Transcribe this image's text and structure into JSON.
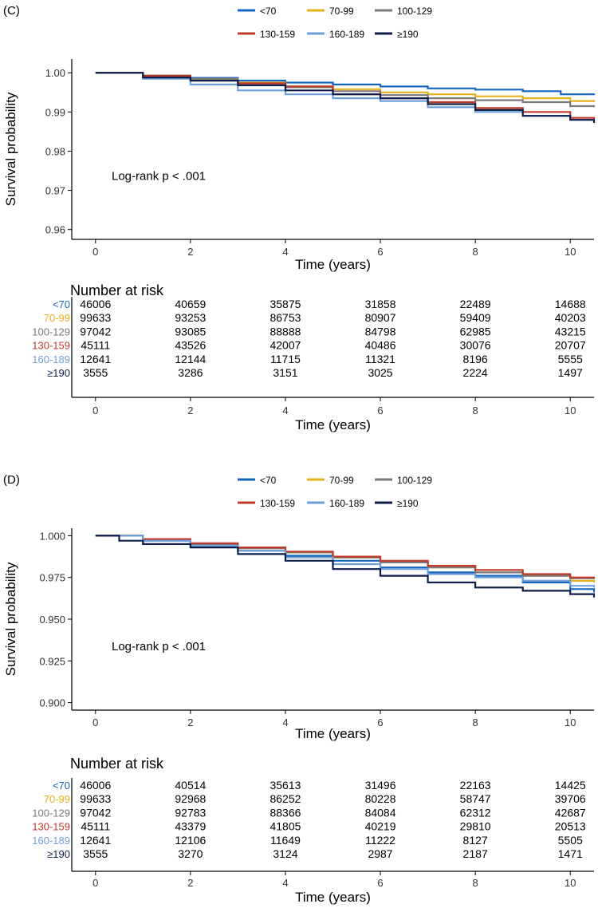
{
  "colors": {
    "<70": "#1565C0",
    "70-99": "#E6B01B",
    "100-129": "#7A7A7A",
    "130-159": "#C0392B",
    "160-189": "#6FA0DC",
    "≥190": "#0E1E4A"
  },
  "chart_data": [
    {
      "type": "line",
      "subtype": "kaplan-meier",
      "panel_label": "(C)",
      "xlabel": "Time (years)",
      "ylabel": "Survival probability",
      "xlim": [
        -0.5,
        10.5
      ],
      "ylim": [
        0.9575,
        1.0035
      ],
      "x_ticks": [
        0,
        2,
        4,
        6,
        8,
        10
      ],
      "x_tick_labels": [
        "0",
        "2",
        "4",
        "6",
        "8",
        "10"
      ],
      "y_ticks": [
        0.96,
        0.97,
        0.98,
        0.99,
        1.0
      ],
      "y_tick_labels": [
        "0.96",
        "0.97",
        "0.98",
        "0.99",
        "1.00"
      ],
      "annotation": "Log-rank p < .001",
      "legend_labels": [
        "<70",
        "70-99",
        "100-129",
        "130-159",
        "160-189",
        "≥190"
      ],
      "series": [
        {
          "name": "<70",
          "x": [
            0,
            1,
            2,
            3,
            4,
            5,
            6,
            7,
            8,
            9,
            9.8,
            10.5
          ],
          "y": [
            1.0,
            0.9993,
            0.9987,
            0.998,
            0.9975,
            0.997,
            0.9965,
            0.996,
            0.9957,
            0.9953,
            0.9945,
            0.9943
          ]
        },
        {
          "name": "70-99",
          "x": [
            0,
            1,
            2,
            3,
            4,
            5,
            6,
            7,
            8,
            9,
            10,
            10.5
          ],
          "y": [
            1.0,
            0.9993,
            0.9985,
            0.9975,
            0.9965,
            0.9958,
            0.995,
            0.9945,
            0.994,
            0.9935,
            0.9928,
            0.9925
          ]
        },
        {
          "name": "100-129",
          "x": [
            0,
            1,
            2,
            3,
            4,
            5,
            6,
            7,
            8,
            9,
            10,
            10.5
          ],
          "y": [
            1.0,
            0.9993,
            0.9985,
            0.9973,
            0.9963,
            0.9953,
            0.9943,
            0.9935,
            0.993,
            0.9925,
            0.9915,
            0.9912
          ]
        },
        {
          "name": "130-159",
          "x": [
            0,
            1,
            2,
            3,
            4,
            5,
            6,
            7,
            8,
            9,
            10,
            10.5
          ],
          "y": [
            1.0,
            0.9992,
            0.998,
            0.9973,
            0.9965,
            0.9945,
            0.9935,
            0.9925,
            0.991,
            0.99,
            0.9885,
            0.9882
          ]
        },
        {
          "name": "160-189",
          "x": [
            0,
            1,
            2,
            3,
            4,
            5,
            6,
            7,
            8,
            9,
            10,
            10.5
          ],
          "y": [
            1.0,
            0.9985,
            0.997,
            0.9955,
            0.9945,
            0.9935,
            0.9928,
            0.9912,
            0.99,
            0.989,
            0.988,
            0.9875
          ]
        },
        {
          "name": "≥190",
          "x": [
            0,
            1,
            2,
            3,
            4,
            5,
            6,
            7,
            8,
            9,
            10,
            10.5
          ],
          "y": [
            1.0,
            0.9988,
            0.998,
            0.9968,
            0.9955,
            0.9945,
            0.9935,
            0.992,
            0.9905,
            0.989,
            0.988,
            0.9872
          ]
        }
      ],
      "risk_table": {
        "title": "Number at risk",
        "xlabel": "Time (years)",
        "time_points": [
          0,
          2,
          4,
          6,
          8,
          10
        ],
        "tick_labels": [
          "0",
          "2",
          "4",
          "6",
          "8",
          "10"
        ],
        "rows": [
          {
            "label": "<70",
            "values": [
              "46006",
              "40659",
              "35875",
              "31858",
              "22489",
              "14688"
            ]
          },
          {
            "label": "70-99",
            "values": [
              "99633",
              "93253",
              "86753",
              "80907",
              "59409",
              "40203"
            ]
          },
          {
            "label": "100-129",
            "values": [
              "97042",
              "93085",
              "88888",
              "84798",
              "62985",
              "43215"
            ]
          },
          {
            "label": "130-159",
            "values": [
              "45111",
              "43526",
              "42007",
              "40486",
              "30076",
              "20707"
            ]
          },
          {
            "label": "160-189",
            "values": [
              "12641",
              "12144",
              "11715",
              "11321",
              "8196",
              "5555"
            ]
          },
          {
            "label": "≥190",
            "values": [
              "3555",
              "3286",
              "3151",
              "3025",
              "2224",
              "1497"
            ]
          }
        ]
      }
    },
    {
      "type": "line",
      "subtype": "kaplan-meier",
      "panel_label": "(D)",
      "xlabel": "Time (years)",
      "ylabel": "Survival probability",
      "xlim": [
        -0.5,
        10.5
      ],
      "ylim": [
        0.8955,
        1.0045
      ],
      "x_ticks": [
        0,
        2,
        4,
        6,
        8,
        10
      ],
      "x_tick_labels": [
        "0",
        "2",
        "4",
        "6",
        "8",
        "10"
      ],
      "y_ticks": [
        0.9,
        0.925,
        0.95,
        0.975,
        1.0
      ],
      "y_tick_labels": [
        "0.900",
        "0.925",
        "0.950",
        "0.975",
        "1.000"
      ],
      "annotation": "Log-rank p < .001",
      "legend_labels": [
        "<70",
        "70-99",
        "100-129",
        "130-159",
        "160-189",
        "≥190"
      ],
      "series": [
        {
          "name": "<70",
          "x": [
            0,
            1,
            2,
            3,
            4,
            5,
            6,
            7,
            8,
            9,
            10,
            10.5
          ],
          "y": [
            1.0,
            0.997,
            0.994,
            0.991,
            0.988,
            0.985,
            0.981,
            0.978,
            0.976,
            0.972,
            0.968,
            0.966
          ]
        },
        {
          "name": "70-99",
          "x": [
            0,
            1,
            2,
            3,
            4,
            5,
            6,
            7,
            8,
            9,
            10,
            10.5
          ],
          "y": [
            1.0,
            0.9975,
            0.995,
            0.9925,
            0.99,
            0.987,
            0.984,
            0.981,
            0.978,
            0.976,
            0.973,
            0.972
          ]
        },
        {
          "name": "100-129",
          "x": [
            0,
            1,
            2,
            3,
            4,
            5,
            6,
            7,
            8,
            9,
            10,
            10.5
          ],
          "y": [
            1.0,
            0.9975,
            0.995,
            0.9925,
            0.99,
            0.987,
            0.984,
            0.981,
            0.978,
            0.976,
            0.9745,
            0.974
          ]
        },
        {
          "name": "130-159",
          "x": [
            0,
            1,
            2,
            3,
            4,
            5,
            6,
            7,
            8,
            9,
            10,
            10.5
          ],
          "y": [
            1.0,
            0.998,
            0.9955,
            0.993,
            0.9905,
            0.9875,
            0.985,
            0.982,
            0.9795,
            0.977,
            0.975,
            0.9742
          ]
        },
        {
          "name": "160-189",
          "x": [
            0,
            1,
            2,
            3,
            4,
            5,
            6,
            7,
            8,
            9,
            10,
            10.5
          ],
          "y": [
            1.0,
            0.997,
            0.994,
            0.991,
            0.987,
            0.983,
            0.98,
            0.977,
            0.975,
            0.973,
            0.97,
            0.969
          ]
        },
        {
          "name": "≥190",
          "x": [
            0,
            0.5,
            1,
            2,
            3,
            4,
            5,
            6,
            7,
            8,
            9,
            10,
            10.5
          ],
          "y": [
            1.0,
            0.997,
            0.995,
            0.993,
            0.989,
            0.985,
            0.98,
            0.976,
            0.972,
            0.969,
            0.967,
            0.965,
            0.963
          ]
        }
      ],
      "risk_table": {
        "title": "Number at risk",
        "xlabel": "Time (years)",
        "time_points": [
          0,
          2,
          4,
          6,
          8,
          10
        ],
        "tick_labels": [
          "0",
          "2",
          "4",
          "6",
          "8",
          "10"
        ],
        "rows": [
          {
            "label": "<70",
            "values": [
              "46006",
              "40514",
              "35613",
              "31496",
              "22163",
              "14425"
            ]
          },
          {
            "label": "70-99",
            "values": [
              "99633",
              "92968",
              "86252",
              "80228",
              "58747",
              "39706"
            ]
          },
          {
            "label": "100-129",
            "values": [
              "97042",
              "92783",
              "88366",
              "84084",
              "62312",
              "42687"
            ]
          },
          {
            "label": "130-159",
            "values": [
              "45111",
              "43379",
              "41805",
              "40219",
              "29810",
              "20513"
            ]
          },
          {
            "label": "160-189",
            "values": [
              "12641",
              "12106",
              "11649",
              "11222",
              "8127",
              "5505"
            ]
          },
          {
            "label": "≥190",
            "values": [
              "3555",
              "3270",
              "3124",
              "2987",
              "2187",
              "1471"
            ]
          }
        ]
      }
    }
  ]
}
